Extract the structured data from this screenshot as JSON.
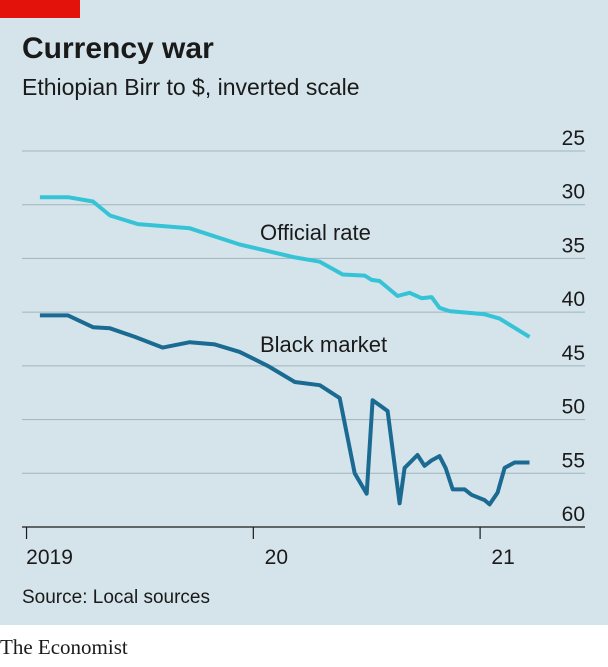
{
  "chart_data": {
    "type": "line",
    "title": "Currency war",
    "subtitle": "Ethiopian Birr to $, inverted scale",
    "source": "Source: Local sources",
    "brand": "The Economist",
    "ylim": [
      25,
      60
    ],
    "yticks": [
      25,
      30,
      35,
      40,
      45,
      50,
      55,
      60
    ],
    "y_inverted": true,
    "grid": true,
    "xlim": [
      2018.98,
      2021.22
    ],
    "xticks": [
      {
        "value": 2019,
        "label": "2019"
      },
      {
        "value": 2020,
        "label": "20"
      },
      {
        "value": 2021,
        "label": "21"
      }
    ],
    "series": [
      {
        "name": "Official rate",
        "color": "#36c3d6",
        "x": [
          2019.059,
          2019.183,
          2019.293,
          2019.368,
          2019.491,
          2019.72,
          2019.94,
          2020.183,
          2020.293,
          2020.394,
          2020.491,
          2020.522,
          2020.557,
          2020.636,
          2020.689,
          2020.742,
          2020.786,
          2020.821,
          2020.865,
          2021.02,
          2021.086,
          2021.218
        ],
        "values": [
          29.3,
          29.3,
          29.7,
          31,
          31.8,
          32.2,
          33.7,
          34.9,
          35.3,
          36.5,
          36.6,
          37,
          37.1,
          38.5,
          38.2,
          38.7,
          38.6,
          39.6,
          39.9,
          40.2,
          40.6,
          42.3
        ]
      },
      {
        "name": "Black market",
        "color": "#1b6a92",
        "x": [
          2019.059,
          2019.183,
          2019.293,
          2019.368,
          2019.478,
          2019.601,
          2019.72,
          2019.83,
          2019.94,
          2020.064,
          2020.183,
          2020.293,
          2020.381,
          2020.447,
          2020.5,
          2020.526,
          2020.592,
          2020.645,
          2020.667,
          2020.724,
          2020.755,
          2020.786,
          2020.821,
          2020.848,
          2020.879,
          2020.932,
          2020.962,
          2021.02,
          2021.042,
          2021.077,
          2021.108,
          2021.152,
          2021.218
        ],
        "values": [
          40.3,
          40.3,
          41.4,
          41.5,
          42.3,
          43.3,
          42.8,
          43,
          43.7,
          45,
          46.5,
          46.8,
          48,
          55,
          56.9,
          48.2,
          49.2,
          57.8,
          54.5,
          53.3,
          54.3,
          53.8,
          53.4,
          54.5,
          56.5,
          56.5,
          57,
          57.5,
          57.9,
          56.8,
          54.5,
          54,
          54
        ]
      }
    ]
  }
}
